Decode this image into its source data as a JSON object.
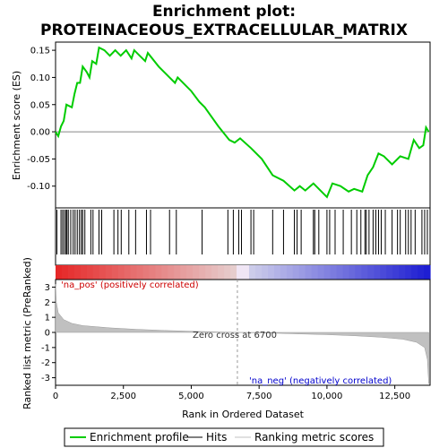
{
  "title_line1": "Enrichment plot:",
  "title_line2": "PROTEINACEOUS_EXTRACELLULAR_MATRIX",
  "chart_data": {
    "type": "line",
    "ylabel_top": "Enrichment score (ES)",
    "ylabel_bottom": "Ranked list metric (PreRanked)",
    "xlabel": "Rank in Ordered Dataset",
    "x_range": [
      0,
      13800
    ],
    "es_ylim": [
      -0.14,
      0.165
    ],
    "metric_ylim": [
      -3.5,
      3.5
    ],
    "x_ticks": [
      "0",
      "2,500",
      "5,000",
      "7,500",
      "10,000",
      "12,500"
    ],
    "x_tick_values": [
      0,
      2500,
      5000,
      7500,
      10000,
      12500
    ],
    "es_ticks": [
      "0.15",
      "0.10",
      "0.05",
      "0.00",
      "-0.05",
      "-0.10"
    ],
    "es_tick_values": [
      0.15,
      0.1,
      0.05,
      0.0,
      -0.05,
      -0.1
    ],
    "metric_ticks": [
      "3",
      "2",
      "1",
      "0",
      "-1",
      "-2",
      "-3"
    ],
    "metric_tick_values": [
      3,
      2,
      1,
      0,
      -1,
      -2,
      -3
    ],
    "zero_cross_label": "Zero cross at 6700",
    "zero_cross_rank": 6700,
    "pos_label": "'na_pos' (positively correlated)",
    "neg_label": "'na_neg' (negatively correlated)",
    "es_curve": [
      [
        0,
        0.0
      ],
      [
        100,
        -0.008
      ],
      [
        200,
        0.01
      ],
      [
        300,
        0.02
      ],
      [
        400,
        0.05
      ],
      [
        600,
        0.045
      ],
      [
        700,
        0.07
      ],
      [
        800,
        0.09
      ],
      [
        900,
        0.09
      ],
      [
        1000,
        0.12
      ],
      [
        1150,
        0.11
      ],
      [
        1250,
        0.1
      ],
      [
        1350,
        0.13
      ],
      [
        1500,
        0.125
      ],
      [
        1600,
        0.155
      ],
      [
        1800,
        0.15
      ],
      [
        2000,
        0.14
      ],
      [
        2200,
        0.15
      ],
      [
        2400,
        0.14
      ],
      [
        2600,
        0.15
      ],
      [
        2800,
        0.135
      ],
      [
        2900,
        0.15
      ],
      [
        3100,
        0.14
      ],
      [
        3300,
        0.13
      ],
      [
        3400,
        0.145
      ],
      [
        3800,
        0.12
      ],
      [
        4200,
        0.1
      ],
      [
        4400,
        0.09
      ],
      [
        4500,
        0.1
      ],
      [
        5000,
        0.075
      ],
      [
        5300,
        0.055
      ],
      [
        5500,
        0.045
      ],
      [
        6000,
        0.01
      ],
      [
        6400,
        -0.015
      ],
      [
        6600,
        -0.02
      ],
      [
        6800,
        -0.012
      ],
      [
        7200,
        -0.03
      ],
      [
        7600,
        -0.05
      ],
      [
        8000,
        -0.08
      ],
      [
        8400,
        -0.09
      ],
      [
        8800,
        -0.108
      ],
      [
        9000,
        -0.1
      ],
      [
        9200,
        -0.108
      ],
      [
        9500,
        -0.095
      ],
      [
        9800,
        -0.11
      ],
      [
        10000,
        -0.12
      ],
      [
        10200,
        -0.095
      ],
      [
        10500,
        -0.1
      ],
      [
        10800,
        -0.11
      ],
      [
        11000,
        -0.105
      ],
      [
        11300,
        -0.11
      ],
      [
        11500,
        -0.08
      ],
      [
        11700,
        -0.065
      ],
      [
        11900,
        -0.04
      ],
      [
        12100,
        -0.045
      ],
      [
        12400,
        -0.06
      ],
      [
        12700,
        -0.045
      ],
      [
        13000,
        -0.05
      ],
      [
        13200,
        -0.015
      ],
      [
        13400,
        -0.03
      ],
      [
        13550,
        -0.025
      ],
      [
        13650,
        0.008
      ],
      [
        13750,
        0.0
      ]
    ],
    "hits": [
      50,
      200,
      260,
      320,
      380,
      420,
      470,
      560,
      650,
      720,
      800,
      880,
      950,
      1000,
      1080,
      1300,
      1380,
      1600,
      1700,
      2150,
      2300,
      2420,
      2700,
      2950,
      3350,
      3500,
      4200,
      4450,
      5400,
      6350,
      6550,
      6750,
      6850,
      7200,
      7300,
      8000,
      8400,
      8800,
      8900,
      9050,
      9500,
      9550,
      9700,
      10000,
      10100,
      10300,
      10600,
      10900,
      11100,
      11250,
      11400,
      11450,
      11550,
      11700,
      11800,
      11900,
      12000,
      12150,
      12400,
      12600,
      12700,
      12900,
      13000,
      13100,
      13250,
      13500,
      13600,
      13700
    ],
    "metric_curve": [
      [
        0,
        3.2
      ],
      [
        30,
        2.0
      ],
      [
        100,
        1.3
      ],
      [
        300,
        0.85
      ],
      [
        600,
        0.6
      ],
      [
        1000,
        0.45
      ],
      [
        2000,
        0.3
      ],
      [
        3000,
        0.2
      ],
      [
        4000,
        0.13
      ],
      [
        5000,
        0.08
      ],
      [
        6000,
        0.03
      ],
      [
        6700,
        0.0
      ],
      [
        8000,
        -0.05
      ],
      [
        9000,
        -0.1
      ],
      [
        10000,
        -0.15
      ],
      [
        11000,
        -0.22
      ],
      [
        12000,
        -0.32
      ],
      [
        12800,
        -0.45
      ],
      [
        13300,
        -0.65
      ],
      [
        13600,
        -1.0
      ],
      [
        13700,
        -1.8
      ],
      [
        13750,
        -3.4
      ]
    ]
  },
  "legend": {
    "profile": "Enrichment profile",
    "hits": "Hits",
    "metric": "Ranking metric scores"
  },
  "colors": {
    "es_line": "#00cc00",
    "hit_line": "#000000",
    "zero_line": "#888888",
    "metric_fill": "#c0c0c0",
    "pos_text": "#cc0000",
    "neg_text": "#0000cc"
  }
}
